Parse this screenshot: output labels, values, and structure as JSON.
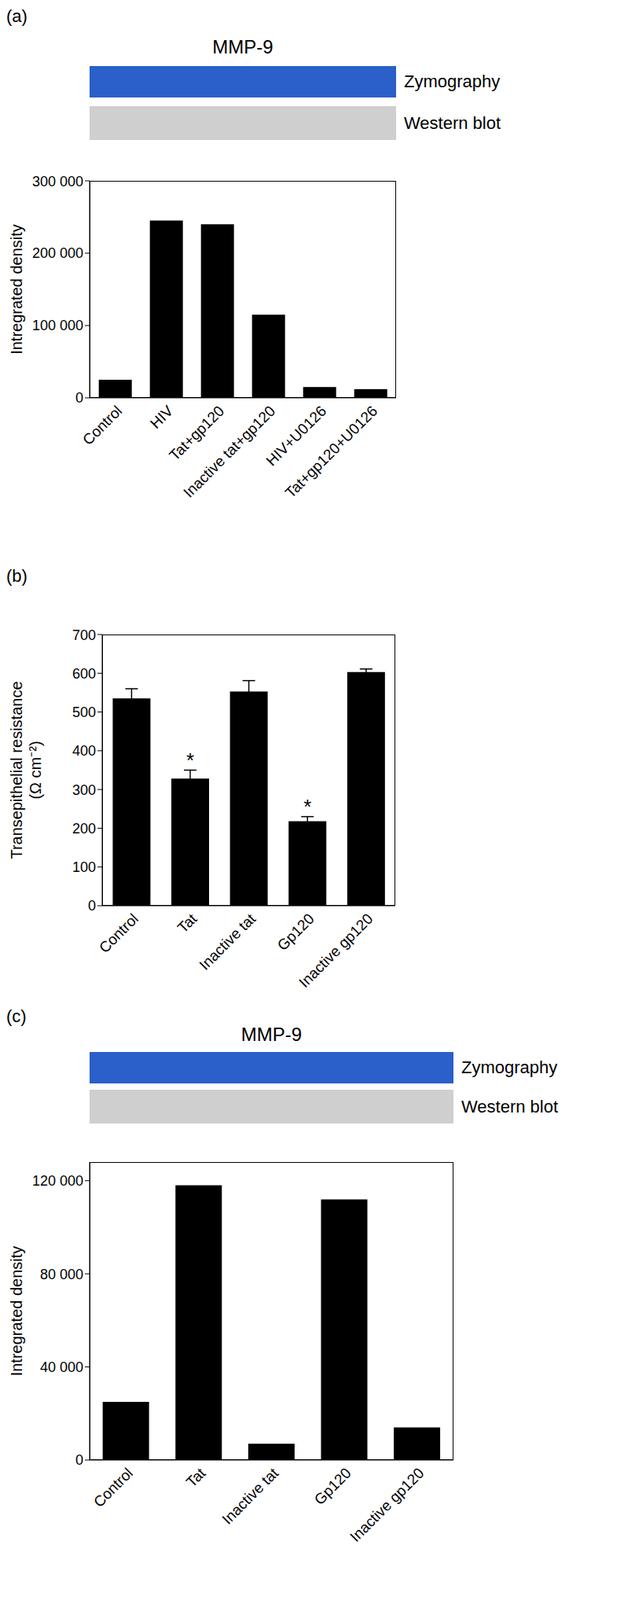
{
  "chart_data": [
    {
      "type": "bar",
      "panel": "(a)",
      "title": "MMP-9",
      "strips": [
        "Zymography",
        "Western blot"
      ],
      "categories": [
        "Control",
        "HIV",
        "Tat+gp120",
        "Inactive tat+gp120",
        "HIV+U0126",
        "Tat+gp120+U0126"
      ],
      "values": [
        25000,
        245000,
        240000,
        115000,
        15000,
        12000
      ],
      "color": "#000000",
      "ylabel": "Intregrated density",
      "ylim": [
        0,
        300000
      ],
      "yticks": [
        0,
        {
          "value": 100000,
          "label": "100 000"
        },
        {
          "value": 200000,
          "label": "200 000"
        },
        {
          "value": 300000,
          "label": "300 000"
        }
      ]
    },
    {
      "type": "bar",
      "panel": "(b)",
      "categories": [
        "Control",
        "Tat",
        "Inactive tat",
        "Gp120",
        "Inactive gp120"
      ],
      "values": [
        535,
        328,
        553,
        218,
        603
      ],
      "errors": [
        25,
        22,
        28,
        12,
        8
      ],
      "annotations": [
        {
          "category": "Tat",
          "text": "*"
        },
        {
          "category": "Gp120",
          "text": "*"
        }
      ],
      "color": "#000000",
      "ylabel": "Transepithelial resistance (Ω cm⁻²)",
      "ylim": [
        0,
        700
      ],
      "yticks": [
        0,
        100,
        200,
        300,
        400,
        500,
        600,
        700
      ]
    },
    {
      "type": "bar",
      "panel": "(c)",
      "title": "MMP-9",
      "strips": [
        "Zymography",
        "Western blot"
      ],
      "categories": [
        "Control",
        "Tat",
        "Inactive tat",
        "Gp120",
        "Inactive gp120"
      ],
      "values": [
        25000,
        118000,
        7000,
        112000,
        14000
      ],
      "color": "#000000",
      "ylabel": "Intregrated density",
      "ylim": [
        0,
        128000
      ],
      "yticks": [
        0,
        {
          "value": 40000,
          "label": "40 000"
        },
        {
          "value": 80000,
          "label": "80 000"
        },
        {
          "value": 120000,
          "label": "120 000"
        }
      ]
    }
  ]
}
